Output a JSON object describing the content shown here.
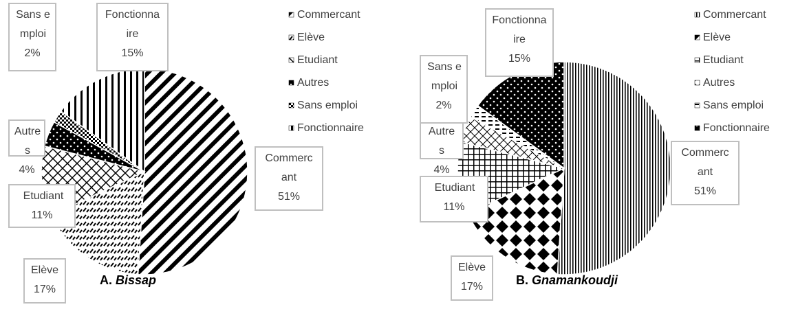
{
  "chart_data": [
    {
      "type": "pie",
      "caption_prefix": "A.",
      "caption": "Bissap",
      "categories": [
        "Commercant",
        "Elève",
        "Etudiant",
        "Autres",
        "Sans emploi",
        "Fonctionnaire"
      ],
      "values": [
        51,
        17,
        11,
        4,
        2,
        15
      ],
      "value_labels": [
        "51%",
        "17%",
        "11%",
        "4%",
        "2%",
        "15%"
      ],
      "patterns": [
        "diagonal",
        "dashes",
        "crosshatch",
        "dark-dots",
        "checker",
        "vertical-stripes"
      ],
      "color": "#000000"
    },
    {
      "type": "pie",
      "caption_prefix": "B.",
      "caption": "Gnamankoudji",
      "categories": [
        "Commercant",
        "Elève",
        "Etudiant",
        "Autres",
        "Sans emploi",
        "Fonctionnaire"
      ],
      "values": [
        51,
        17,
        11,
        4,
        2,
        15
      ],
      "value_labels": [
        "51%",
        "17%",
        "11%",
        "4%",
        "2%",
        "15%"
      ],
      "patterns": [
        "fine-vertical",
        "diamonds",
        "grid",
        "diagonal-cross",
        "horizontal-dashes",
        "dark-dots"
      ],
      "color": "#000000"
    }
  ]
}
